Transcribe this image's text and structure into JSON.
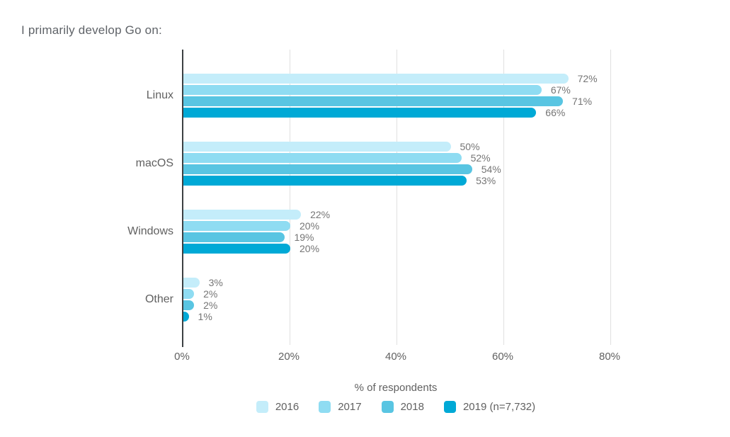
{
  "title": "I primarily develop Go on:",
  "chart_data": {
    "type": "bar",
    "orientation": "horizontal",
    "title": "I primarily develop Go on:",
    "categories": [
      "Linux",
      "macOS",
      "Windows",
      "Other"
    ],
    "series": [
      {
        "name": "2016",
        "color": "#c4edfa",
        "values": [
          72,
          50,
          22,
          3
        ]
      },
      {
        "name": "2017",
        "color": "#8fdcf2",
        "values": [
          67,
          52,
          20,
          2
        ]
      },
      {
        "name": "2018",
        "color": "#59c5e2",
        "values": [
          71,
          54,
          19,
          2
        ]
      },
      {
        "name": "2019 (n=7,732)",
        "color": "#00a9d6",
        "values": [
          66,
          53,
          20,
          1
        ]
      }
    ],
    "value_label_suffix": "%",
    "xlabel": "% of respondents",
    "x_ticks": [
      {
        "label": "0%",
        "value": 0
      },
      {
        "label": "20%",
        "value": 20
      },
      {
        "label": "40%",
        "value": 40
      },
      {
        "label": "60%",
        "value": 60
      },
      {
        "label": "80%",
        "value": 80
      }
    ],
    "xlim": [
      0,
      80
    ],
    "grid": "vertical",
    "legend_position": "bottom"
  },
  "style_colors": {
    "title_text": "#5f6368",
    "axis_line": "#3c4043",
    "gridline": "#e0e0e0",
    "category_text": "#616161",
    "value_text": "#757575",
    "background": "#ffffff"
  }
}
